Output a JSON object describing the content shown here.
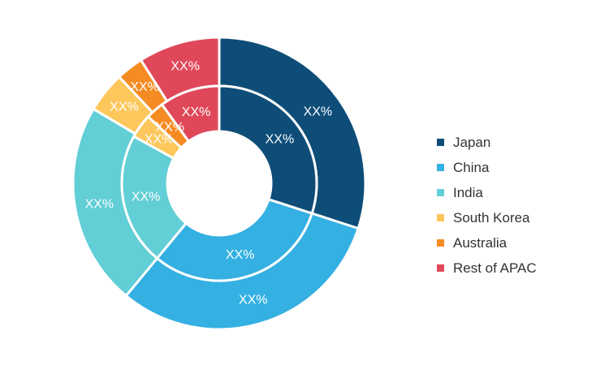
{
  "chart_data": {
    "type": "pie",
    "subtype": "double-donut",
    "legend_position": "right",
    "categories": [
      "Japan",
      "China",
      "India",
      "South Korea",
      "Australia",
      "Rest of APAC"
    ],
    "colors": [
      "#0e4d78",
      "#34b0e2",
      "#62ced6",
      "#fdc75c",
      "#f58b23",
      "#e0485a"
    ],
    "series": [
      {
        "ring": "outer",
        "values": [
          30,
          31,
          22.5,
          4.5,
          3,
          9
        ],
        "labels": [
          "XX%",
          "XX%",
          "XX%",
          "XX%",
          "XX%",
          "XX%"
        ]
      },
      {
        "ring": "inner",
        "values": [
          30,
          31,
          22,
          4,
          3,
          10
        ],
        "labels": [
          "XX%",
          "XX%",
          "XX%",
          "XX%",
          "XX%",
          "XX%"
        ]
      }
    ]
  }
}
